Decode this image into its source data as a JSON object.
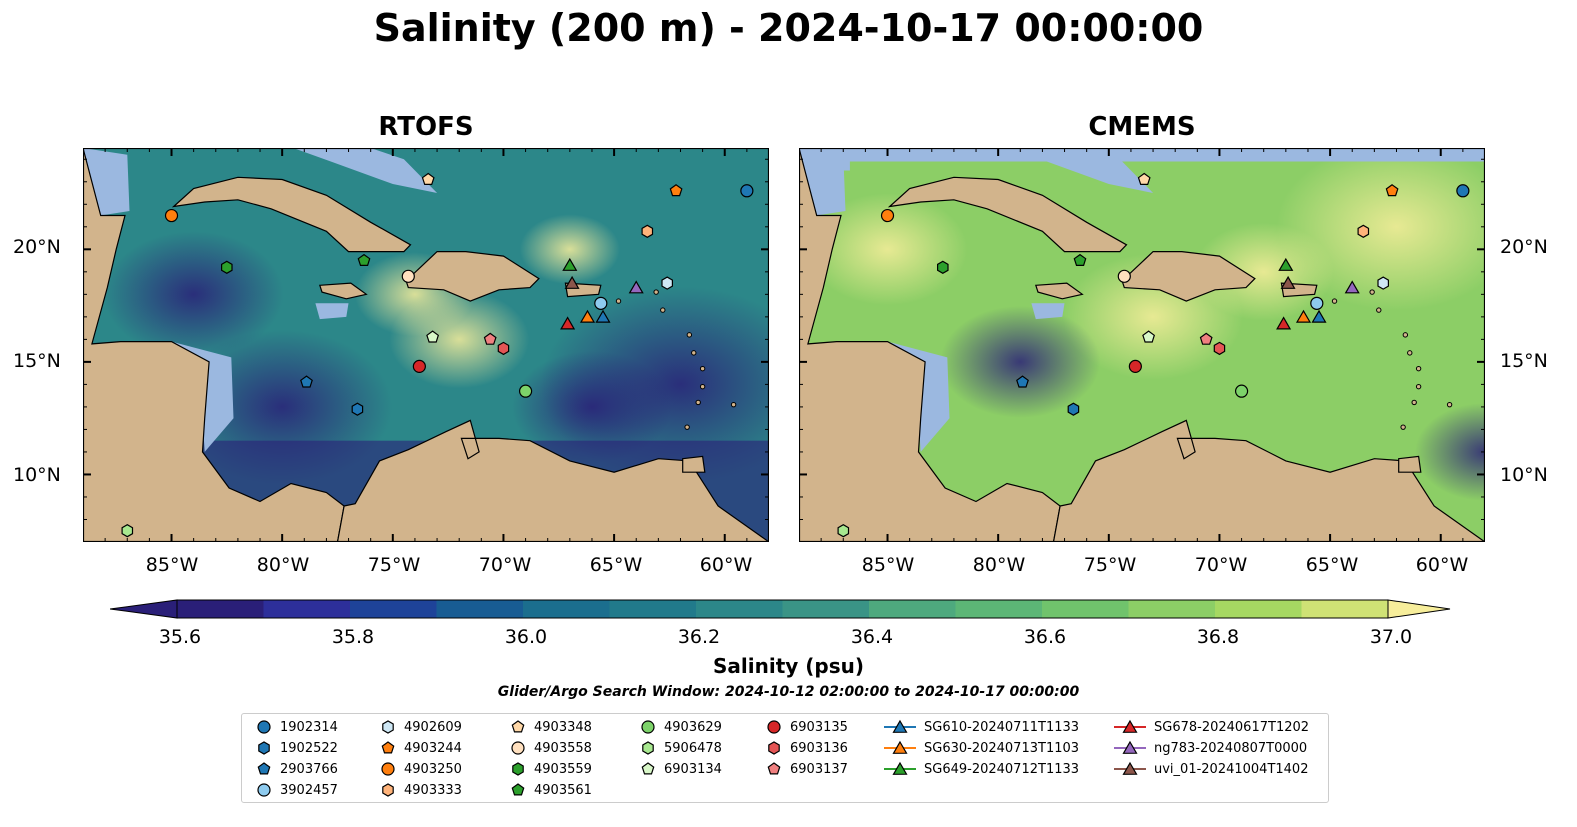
{
  "title": "Salinity (200 m) - 2024-10-17 00:00:00",
  "panels": [
    {
      "title": "RTOFS"
    },
    {
      "title": "CMEMS"
    }
  ],
  "lat_labels": [
    "20°N",
    "15°N",
    "10°N"
  ],
  "lon_labels": [
    "85°W",
    "80°W",
    "75°W",
    "70°W",
    "65°W",
    "60°W"
  ],
  "colorbar": {
    "label": "Salinity (psu)",
    "ticks": [
      "35.6",
      "35.8",
      "36.0",
      "36.2",
      "36.4",
      "36.6",
      "36.8",
      "37.0"
    ],
    "min": 35.6,
    "max": 37.0,
    "step": 0.1,
    "colors": [
      "#2a1f78",
      "#2d2f9a",
      "#1e4399",
      "#185c93",
      "#1b6e8e",
      "#217a8b",
      "#2c8789",
      "#3a9486",
      "#4ea97e",
      "#5cb676",
      "#70c36c",
      "#8cce66",
      "#a6d862",
      "#cfe275",
      "#f7ee9b"
    ]
  },
  "search_window": "Glider/Argo Search Window: 2024-10-12 02:00:00 to 2024-10-17 00:00:00",
  "legend": [
    {
      "label": "1902314",
      "shape": "circle",
      "color": "#1f77b4"
    },
    {
      "label": "1902522",
      "shape": "hexagon",
      "color": "#1f77b4"
    },
    {
      "label": "2903766",
      "shape": "pentagon",
      "color": "#1f77b4"
    },
    {
      "label": "3902457",
      "shape": "circle",
      "color": "#8ecbef"
    },
    {
      "label": "4902609",
      "shape": "hexagon",
      "color": "#cfe8f5"
    },
    {
      "label": "4903244",
      "shape": "pentagon",
      "color": "#ff7f0e"
    },
    {
      "label": "4903250",
      "shape": "circle",
      "color": "#ff7f0e"
    },
    {
      "label": "4903333",
      "shape": "hexagon",
      "color": "#ffb37a"
    },
    {
      "label": "4903348",
      "shape": "pentagon",
      "color": "#ffd8a8"
    },
    {
      "label": "4903558",
      "shape": "circle",
      "color": "#ffe0bf"
    },
    {
      "label": "4903559",
      "shape": "hexagon",
      "color": "#2ca02c"
    },
    {
      "label": "4903561",
      "shape": "pentagon",
      "color": "#2ca02c"
    },
    {
      "label": "4903629",
      "shape": "circle",
      "color": "#7dd36a"
    },
    {
      "label": "5906478",
      "shape": "hexagon",
      "color": "#a8e890"
    },
    {
      "label": "6903134",
      "shape": "pentagon",
      "color": "#d8f7c8"
    },
    {
      "label": "6903135",
      "shape": "circle",
      "color": "#d62728"
    },
    {
      "label": "6903136",
      "shape": "hexagon",
      "color": "#e45555"
    },
    {
      "label": "6903137",
      "shape": "pentagon",
      "color": "#f08080"
    },
    {
      "label": "SG610-20240711T1133",
      "shape": "triangle",
      "color": "#1f77b4"
    },
    {
      "label": "SG630-20240713T1103",
      "shape": "triangle",
      "color": "#ff7f0e"
    },
    {
      "label": "SG649-20240712T1133",
      "shape": "triangle",
      "color": "#2ca02c"
    },
    {
      "label": "SG678-20240617T1202",
      "shape": "triangle",
      "color": "#d62728"
    },
    {
      "label": "ng783-20240807T0000",
      "shape": "triangle",
      "color": "#9467bd"
    },
    {
      "label": "uvi_01-20241004T1402",
      "shape": "triangle",
      "color": "#8c564b"
    }
  ],
  "map": {
    "lon_range": [
      -89,
      -58
    ],
    "lat_range": [
      7,
      24.5
    ],
    "land_color": "#d2b48c",
    "shelf_color": "#9bb8e0",
    "observations": [
      {
        "id": "1902314",
        "lon": -59.0,
        "lat": 22.6
      },
      {
        "id": "1902522",
        "lon": -76.6,
        "lat": 12.9
      },
      {
        "id": "2903766",
        "lon": -78.9,
        "lat": 14.1
      },
      {
        "id": "3902457",
        "lon": -65.6,
        "lat": 17.6
      },
      {
        "id": "4902609",
        "lon": -62.6,
        "lat": 18.5
      },
      {
        "id": "4903244",
        "lon": -62.2,
        "lat": 22.6
      },
      {
        "id": "4903250",
        "lon": -85.0,
        "lat": 21.5
      },
      {
        "id": "4903333",
        "lon": -63.5,
        "lat": 20.8
      },
      {
        "id": "4903348",
        "lon": -73.4,
        "lat": 23.1
      },
      {
        "id": "4903558",
        "lon": -74.3,
        "lat": 18.8
      },
      {
        "id": "4903559",
        "lon": -82.5,
        "lat": 19.2
      },
      {
        "id": "4903561",
        "lon": -76.3,
        "lat": 19.5
      },
      {
        "id": "4903629",
        "lon": -69.0,
        "lat": 13.7
      },
      {
        "id": "5906478",
        "lon": -87.0,
        "lat": 7.5
      },
      {
        "id": "6903134",
        "lon": -73.2,
        "lat": 16.1
      },
      {
        "id": "6903135",
        "lon": -73.8,
        "lat": 14.8
      },
      {
        "id": "6903136",
        "lon": -70.0,
        "lat": 15.6
      },
      {
        "id": "6903137",
        "lon": -70.6,
        "lat": 16.0
      },
      {
        "id": "SG610-20240711T1133",
        "lon": -65.5,
        "lat": 17.0
      },
      {
        "id": "SG630-20240713T1103",
        "lon": -66.2,
        "lat": 17.0
      },
      {
        "id": "SG649-20240712T1133",
        "lon": -67.0,
        "lat": 19.3
      },
      {
        "id": "SG678-20240617T1202",
        "lon": -67.1,
        "lat": 16.7
      },
      {
        "id": "ng783-20240807T0000",
        "lon": -64.0,
        "lat": 18.3
      },
      {
        "id": "uvi_01-20241004T1402",
        "lon": -66.9,
        "lat": 18.5
      }
    ]
  }
}
